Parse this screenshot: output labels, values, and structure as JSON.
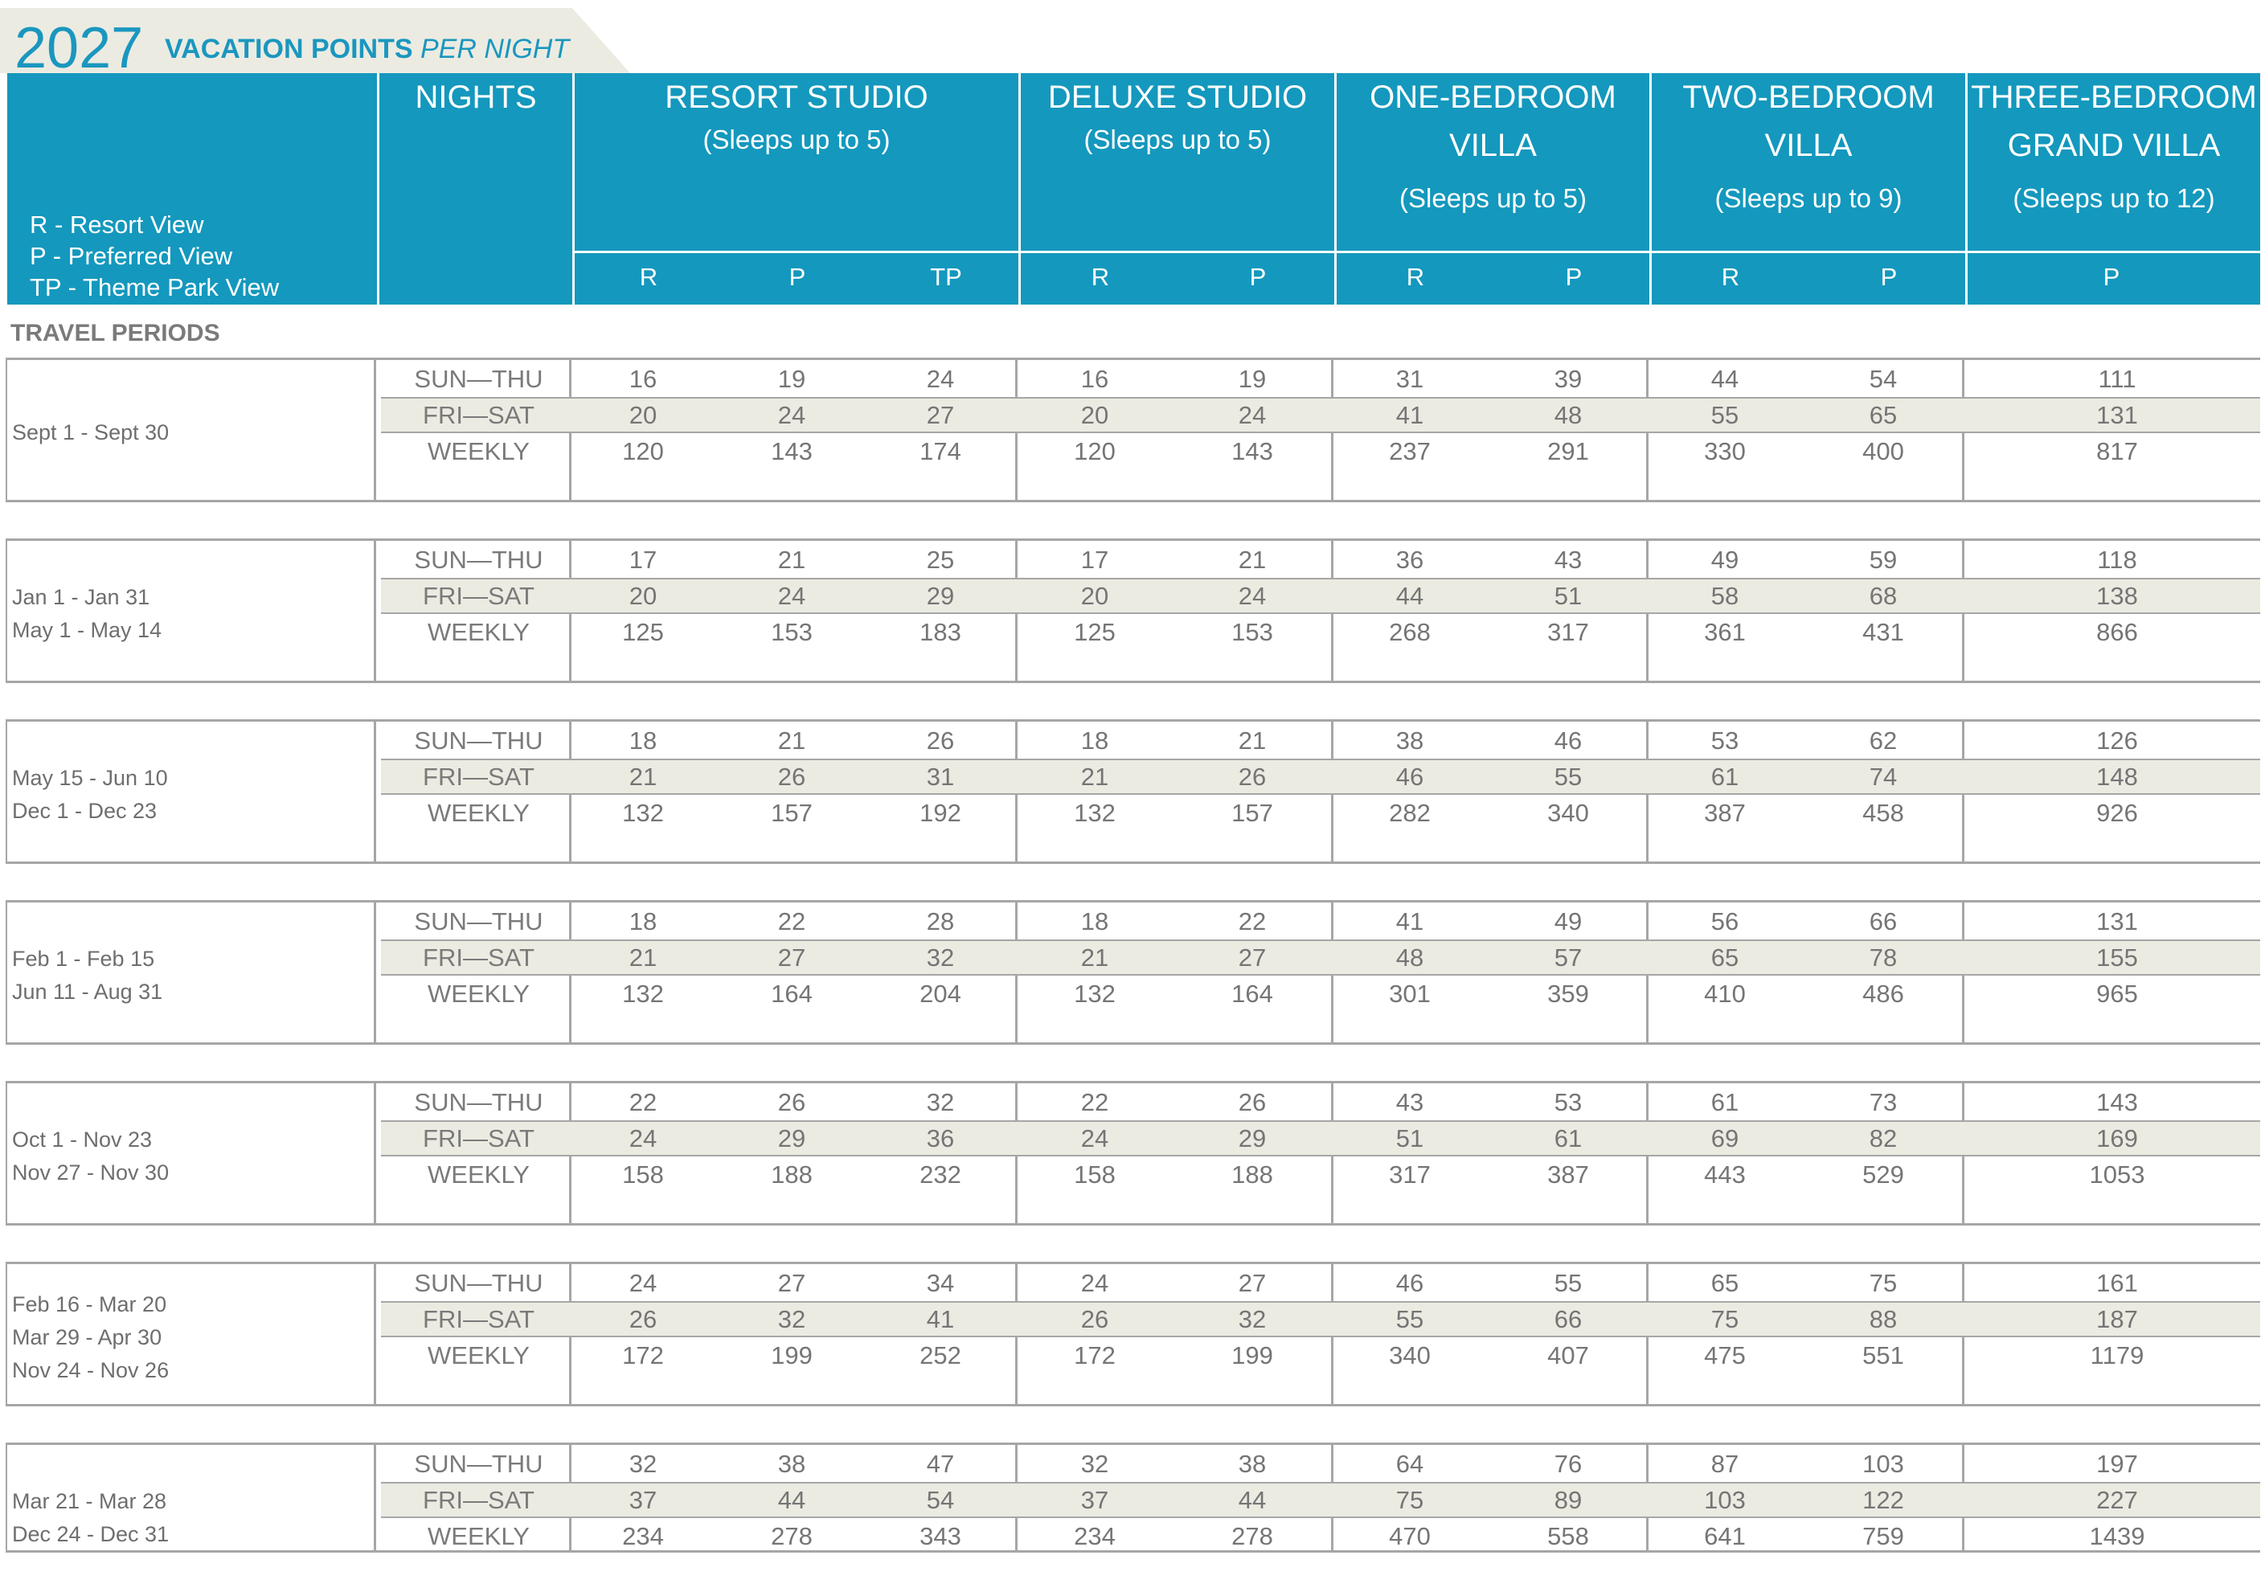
{
  "title": {
    "year": "2027",
    "main": "VACATION POINTS",
    "italic": "PER NIGHT"
  },
  "legend": [
    "R - Resort View",
    "P - Preferred View",
    "TP - Theme Park View"
  ],
  "header": {
    "nights": "NIGHTS",
    "resort_studio": {
      "name": "RESORT STUDIO",
      "sleeps": "(Sleeps up to 5)",
      "views": [
        "R",
        "P",
        "TP"
      ]
    },
    "deluxe_studio": {
      "name": "DELUXE STUDIO",
      "sleeps": "(Sleeps up to 5)",
      "views": [
        "R",
        "P"
      ]
    },
    "one_bedroom": {
      "name1": "ONE-BEDROOM",
      "name2": "VILLA",
      "sleeps": "(Sleeps up to 5)",
      "views": [
        "R",
        "P"
      ]
    },
    "two_bedroom": {
      "name1": "TWO-BEDROOM",
      "name2": "VILLA",
      "sleeps": "(Sleeps up to 9)",
      "views": [
        "R",
        "P"
      ]
    },
    "three_bedroom": {
      "name1": "THREE-BEDROOM",
      "name2": "GRAND VILLA",
      "sleeps": "(Sleeps up to 12)",
      "views": [
        "P"
      ]
    }
  },
  "travel_periods_label": "TRAVEL PERIODS",
  "periods": [
    {
      "dates": [
        "Sept 1 - Sept 30"
      ],
      "rows": [
        {
          "label": "SUN—THU",
          "values": [
            "16",
            "19",
            "24",
            "16",
            "19",
            "31",
            "39",
            "44",
            "54",
            "111"
          ]
        },
        {
          "label": "FRI—SAT",
          "values": [
            "20",
            "24",
            "27",
            "20",
            "24",
            "41",
            "48",
            "55",
            "65",
            "131"
          ]
        },
        {
          "label": "WEEKLY",
          "values": [
            "120",
            "143",
            "174",
            "120",
            "143",
            "237",
            "291",
            "330",
            "400",
            "817"
          ]
        }
      ]
    },
    {
      "dates": [
        "Jan 1 - Jan 31",
        "May 1 - May 14"
      ],
      "rows": [
        {
          "label": "SUN—THU",
          "values": [
            "17",
            "21",
            "25",
            "17",
            "21",
            "36",
            "43",
            "49",
            "59",
            "118"
          ]
        },
        {
          "label": "FRI—SAT",
          "values": [
            "20",
            "24",
            "29",
            "20",
            "24",
            "44",
            "51",
            "58",
            "68",
            "138"
          ]
        },
        {
          "label": "WEEKLY",
          "values": [
            "125",
            "153",
            "183",
            "125",
            "153",
            "268",
            "317",
            "361",
            "431",
            "866"
          ]
        }
      ]
    },
    {
      "dates": [
        "May 15 - Jun 10",
        "Dec 1 - Dec 23"
      ],
      "rows": [
        {
          "label": "SUN—THU",
          "values": [
            "18",
            "21",
            "26",
            "18",
            "21",
            "38",
            "46",
            "53",
            "62",
            "126"
          ]
        },
        {
          "label": "FRI—SAT",
          "values": [
            "21",
            "26",
            "31",
            "21",
            "26",
            "46",
            "55",
            "61",
            "74",
            "148"
          ]
        },
        {
          "label": "WEEKLY",
          "values": [
            "132",
            "157",
            "192",
            "132",
            "157",
            "282",
            "340",
            "387",
            "458",
            "926"
          ]
        }
      ]
    },
    {
      "dates": [
        "Feb 1 - Feb 15",
        "Jun 11 - Aug 31"
      ],
      "rows": [
        {
          "label": "SUN—THU",
          "values": [
            "18",
            "22",
            "28",
            "18",
            "22",
            "41",
            "49",
            "56",
            "66",
            "131"
          ]
        },
        {
          "label": "FRI—SAT",
          "values": [
            "21",
            "27",
            "32",
            "21",
            "27",
            "48",
            "57",
            "65",
            "78",
            "155"
          ]
        },
        {
          "label": "WEEKLY",
          "values": [
            "132",
            "164",
            "204",
            "132",
            "164",
            "301",
            "359",
            "410",
            "486",
            "965"
          ]
        }
      ]
    },
    {
      "dates": [
        "Oct 1 - Nov 23",
        "Nov 27 - Nov 30"
      ],
      "rows": [
        {
          "label": "SUN—THU",
          "values": [
            "22",
            "26",
            "32",
            "22",
            "26",
            "43",
            "53",
            "61",
            "73",
            "143"
          ]
        },
        {
          "label": "FRI—SAT",
          "values": [
            "24",
            "29",
            "36",
            "24",
            "29",
            "51",
            "61",
            "69",
            "82",
            "169"
          ]
        },
        {
          "label": "WEEKLY",
          "values": [
            "158",
            "188",
            "232",
            "158",
            "188",
            "317",
            "387",
            "443",
            "529",
            "1053"
          ]
        }
      ]
    },
    {
      "dates": [
        "Feb 16 - Mar 20",
        "Mar 29 - Apr 30",
        "Nov 24 - Nov 26"
      ],
      "rows": [
        {
          "label": "SUN—THU",
          "values": [
            "24",
            "27",
            "34",
            "24",
            "27",
            "46",
            "55",
            "65",
            "75",
            "161"
          ]
        },
        {
          "label": "FRI—SAT",
          "values": [
            "26",
            "32",
            "41",
            "26",
            "32",
            "55",
            "66",
            "75",
            "88",
            "187"
          ]
        },
        {
          "label": "WEEKLY",
          "values": [
            "172",
            "199",
            "252",
            "172",
            "199",
            "340",
            "407",
            "475",
            "551",
            "1179"
          ]
        }
      ]
    },
    {
      "dates": [
        "Mar 21 - Mar 28",
        "Dec 24 - Dec 31"
      ],
      "rows": [
        {
          "label": "SUN—THU",
          "values": [
            "32",
            "38",
            "47",
            "32",
            "38",
            "64",
            "76",
            "87",
            "103",
            "197"
          ]
        },
        {
          "label": "FRI—SAT",
          "values": [
            "37",
            "44",
            "54",
            "37",
            "44",
            "75",
            "89",
            "103",
            "122",
            "227"
          ]
        },
        {
          "label": "WEEKLY",
          "values": [
            "234",
            "278",
            "343",
            "234",
            "278",
            "470",
            "558",
            "641",
            "759",
            "1439"
          ]
        }
      ]
    }
  ]
}
